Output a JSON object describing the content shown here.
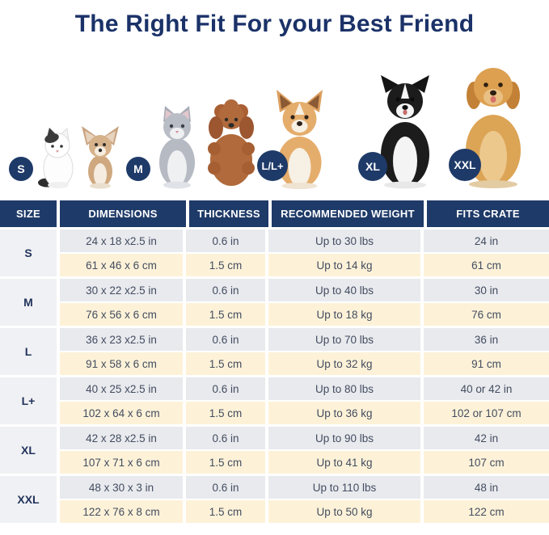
{
  "title": "The Right Fit For your Best Friend",
  "sizes_legend": [
    {
      "badge": "S",
      "pets": "small cat and chihuahua"
    },
    {
      "badge": "M",
      "pets": "gray cat and toy poodle"
    },
    {
      "badge": "L/L+",
      "pets": "corgi"
    },
    {
      "badge": "XL",
      "pets": "border collie"
    },
    {
      "badge": "XXL",
      "pets": "golden retriever"
    }
  ],
  "table": {
    "headers": [
      "SIZE",
      "DIMENSIONS",
      "THICKNESS",
      "RECOMMENDED WEIGHT",
      "FITS CRATE"
    ],
    "groups": [
      {
        "size": "S",
        "rows": [
          [
            "24 x 18 x2.5 in",
            "0.6 in",
            "Up to 30 lbs",
            "24 in"
          ],
          [
            "61 x 46 x 6 cm",
            "1.5 cm",
            "Up to 14 kg",
            "61 cm"
          ]
        ]
      },
      {
        "size": "M",
        "rows": [
          [
            "30 x 22 x2.5 in",
            "0.6 in",
            "Up to 40 lbs",
            "30 in"
          ],
          [
            "76 x 56 x 6 cm",
            "1.5 cm",
            "Up to 18 kg",
            "76 cm"
          ]
        ]
      },
      {
        "size": "L",
        "rows": [
          [
            "36 x 23 x2.5 in",
            "0.6 in",
            "Up to 70 lbs",
            "36 in"
          ],
          [
            "91 x 58 x 6 cm",
            "1.5 cm",
            "Up to 32 kg",
            "91 cm"
          ]
        ]
      },
      {
        "size": "L+",
        "rows": [
          [
            "40 x 25 x2.5 in",
            "0.6 in",
            "Up to 80 lbs",
            "40 or 42 in"
          ],
          [
            "102 x 64 x 6 cm",
            "1.5 cm",
            "Up to 36 kg",
            "102 or 107 cm"
          ]
        ]
      },
      {
        "size": "XL",
        "rows": [
          [
            "42 x 28 x2.5 in",
            "0.6 in",
            "Up to 90 lbs",
            "42 in"
          ],
          [
            "107 x 71 x 6 cm",
            "1.5 cm",
            "Up to 41 kg",
            "107 cm"
          ]
        ]
      },
      {
        "size": "XXL",
        "rows": [
          [
            "48 x 30 x 3 in",
            "0.6 in",
            "Up to 110 lbs",
            "48 in"
          ],
          [
            "122 x 76 x 8 cm",
            "1.5 cm",
            "Up to 50 kg",
            "122 cm"
          ]
        ]
      }
    ]
  },
  "colors": {
    "navy": "#1e3a68",
    "title_navy": "#1b3268",
    "row_in_bg": "#e8eaee",
    "row_cm_bg": "#fdf2d8",
    "size_col_bg": "#f0f1f4",
    "cell_text": "#434c5f"
  }
}
